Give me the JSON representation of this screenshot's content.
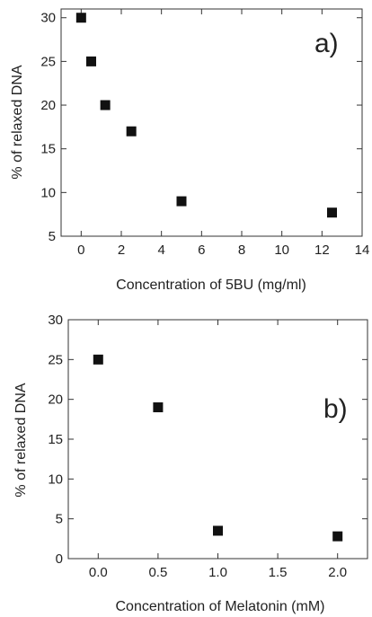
{
  "chart_data": [
    {
      "type": "scatter",
      "panel_label": "a)",
      "xlabel": "Concentration of 5BU (mg/ml)",
      "ylabel": "% of relaxed DNA",
      "xlim": [
        -1,
        14
      ],
      "ylim": [
        5,
        31
      ],
      "x_ticks": [
        "0",
        "2",
        "4",
        "6",
        "8",
        "10",
        "12",
        "14"
      ],
      "y_ticks": [
        "5",
        "10",
        "15",
        "20",
        "25",
        "30"
      ],
      "series": [
        {
          "x": [
            0,
            0.5,
            1.2,
            2.5,
            5,
            12.5
          ],
          "y": [
            30,
            25,
            20,
            17,
            9,
            7.7
          ]
        }
      ],
      "marker": "square",
      "color": "#111111",
      "grid": false
    },
    {
      "type": "scatter",
      "panel_label": "b)",
      "xlabel": "Concentration of Melatonin (mM)",
      "ylabel": "% of relaxed DNA",
      "xlim": [
        -0.25,
        2.25
      ],
      "ylim": [
        0,
        30
      ],
      "x_ticks": [
        "0.0",
        "0.5",
        "1.0",
        "1.5",
        "2.0"
      ],
      "y_ticks": [
        "0",
        "5",
        "10",
        "15",
        "20",
        "25",
        "30"
      ],
      "series": [
        {
          "x": [
            0,
            0.5,
            1.0,
            2.0
          ],
          "y": [
            25,
            19,
            3.5,
            2.8
          ]
        }
      ],
      "marker": "square",
      "color": "#111111",
      "grid": false
    }
  ]
}
